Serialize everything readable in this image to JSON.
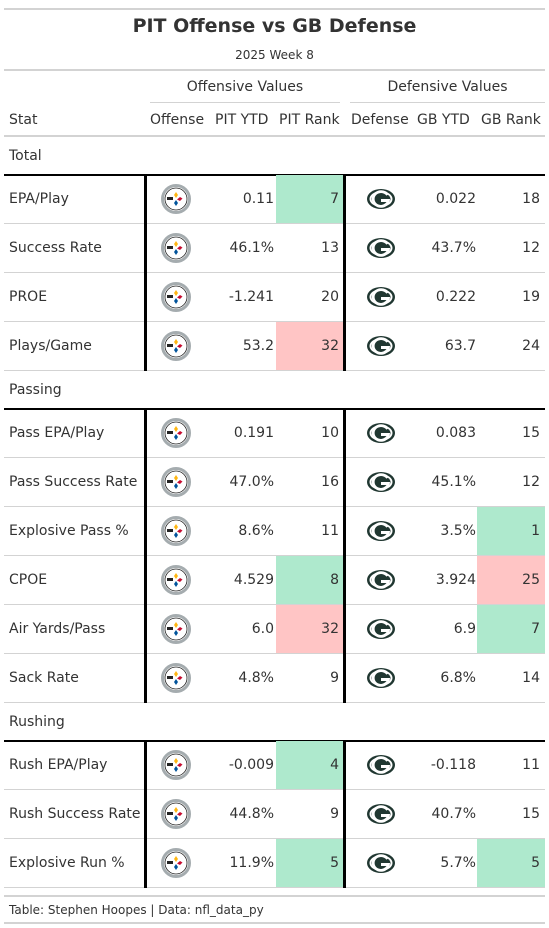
{
  "title": "PIT Offense vs GB Defense",
  "subtitle": "2025 Week 8",
  "spanners": {
    "offense": "Offensive Values",
    "defense": "Defensive Values"
  },
  "columns": {
    "stat": "Stat",
    "offense": "Offense",
    "pit_ytd": "PIT YTD",
    "pit_rank": "PIT Rank",
    "defense": "Defense",
    "gb_ytd": "GB YTD",
    "gb_rank": "GB Rank"
  },
  "colors": {
    "good": "#aee9cd",
    "bad": "#ffc5c5",
    "steelers_gray": "#a5acaf",
    "packers_green": "#203731",
    "packers_gold": "#ffb612"
  },
  "icons": {
    "offense_logo": "steelers-logo-icon",
    "defense_logo": "packers-logo-icon"
  },
  "groups": [
    {
      "name": "Total",
      "rows": [
        {
          "stat": "EPA/Play",
          "pit_ytd": "0.11",
          "pit_rank": "7",
          "pit_color": "good",
          "gb_ytd": "0.022",
          "gb_rank": "18",
          "gb_color": ""
        },
        {
          "stat": "Success Rate",
          "pit_ytd": "46.1%",
          "pit_rank": "13",
          "pit_color": "",
          "gb_ytd": "43.7%",
          "gb_rank": "12",
          "gb_color": ""
        },
        {
          "stat": "PROE",
          "pit_ytd": "-1.241",
          "pit_rank": "20",
          "pit_color": "",
          "gb_ytd": "0.222",
          "gb_rank": "19",
          "gb_color": ""
        },
        {
          "stat": "Plays/Game",
          "pit_ytd": "53.2",
          "pit_rank": "32",
          "pit_color": "bad",
          "gb_ytd": "63.7",
          "gb_rank": "24",
          "gb_color": ""
        }
      ]
    },
    {
      "name": "Passing",
      "rows": [
        {
          "stat": "Pass EPA/Play",
          "pit_ytd": "0.191",
          "pit_rank": "10",
          "pit_color": "",
          "gb_ytd": "0.083",
          "gb_rank": "15",
          "gb_color": ""
        },
        {
          "stat": "Pass Success Rate",
          "pit_ytd": "47.0%",
          "pit_rank": "16",
          "pit_color": "",
          "gb_ytd": "45.1%",
          "gb_rank": "12",
          "gb_color": ""
        },
        {
          "stat": "Explosive Pass %",
          "pit_ytd": "8.6%",
          "pit_rank": "11",
          "pit_color": "",
          "gb_ytd": "3.5%",
          "gb_rank": "1",
          "gb_color": "good"
        },
        {
          "stat": "CPOE",
          "pit_ytd": "4.529",
          "pit_rank": "8",
          "pit_color": "good",
          "gb_ytd": "3.924",
          "gb_rank": "25",
          "gb_color": "bad"
        },
        {
          "stat": "Air Yards/Pass",
          "pit_ytd": "6.0",
          "pit_rank": "32",
          "pit_color": "bad",
          "gb_ytd": "6.9",
          "gb_rank": "7",
          "gb_color": "good"
        },
        {
          "stat": "Sack Rate",
          "pit_ytd": "4.8%",
          "pit_rank": "9",
          "pit_color": "",
          "gb_ytd": "6.8%",
          "gb_rank": "14",
          "gb_color": ""
        }
      ]
    },
    {
      "name": "Rushing",
      "rows": [
        {
          "stat": "Rush EPA/Play",
          "pit_ytd": "-0.009",
          "pit_rank": "4",
          "pit_color": "good",
          "gb_ytd": "-0.118",
          "gb_rank": "11",
          "gb_color": ""
        },
        {
          "stat": "Rush Success Rate",
          "pit_ytd": "44.8%",
          "pit_rank": "9",
          "pit_color": "",
          "gb_ytd": "40.7%",
          "gb_rank": "15",
          "gb_color": ""
        },
        {
          "stat": "Explosive Run %",
          "pit_ytd": "11.9%",
          "pit_rank": "5",
          "pit_color": "good",
          "gb_ytd": "5.7%",
          "gb_rank": "5",
          "gb_color": "good"
        }
      ]
    }
  ],
  "source_note": "Table: Stephen Hoopes | Data: nfl_data_py"
}
